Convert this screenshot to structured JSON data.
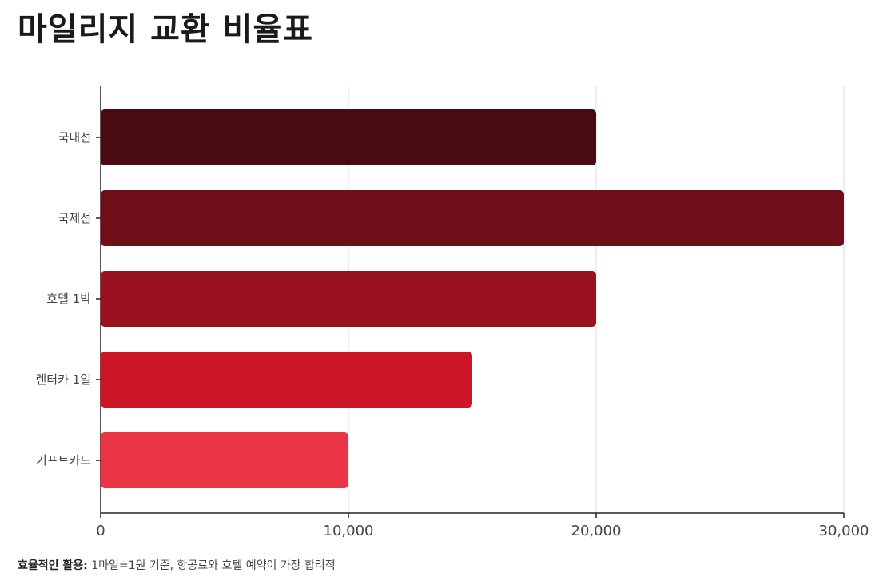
{
  "title": "마일리지 교환 비율표",
  "note": {
    "label": "효율적인 활용:",
    "text": " 1마일=1원 기준, 항공료와 호텔 예약이 가장 합리적"
  },
  "colors": {
    "bars": [
      "#4a0a11",
      "#6e0e19",
      "#9a111f",
      "#cc1626",
      "#ec3447"
    ],
    "axis": "#222222",
    "grid": "#dddddd",
    "label": "#444444"
  },
  "chart_data": {
    "type": "bar",
    "orientation": "horizontal",
    "categories": [
      "국내선",
      "국제선",
      "호텔 1박",
      "렌터카 1일",
      "기프트카드"
    ],
    "values": [
      20000,
      30000,
      20000,
      15000,
      10000
    ],
    "xlim": [
      0,
      30000
    ],
    "xticks": [
      0,
      10000,
      20000,
      30000
    ],
    "xtick_labels": [
      "0",
      "10,000",
      "20,000",
      "30,000"
    ],
    "grid": true,
    "legend": "none"
  }
}
